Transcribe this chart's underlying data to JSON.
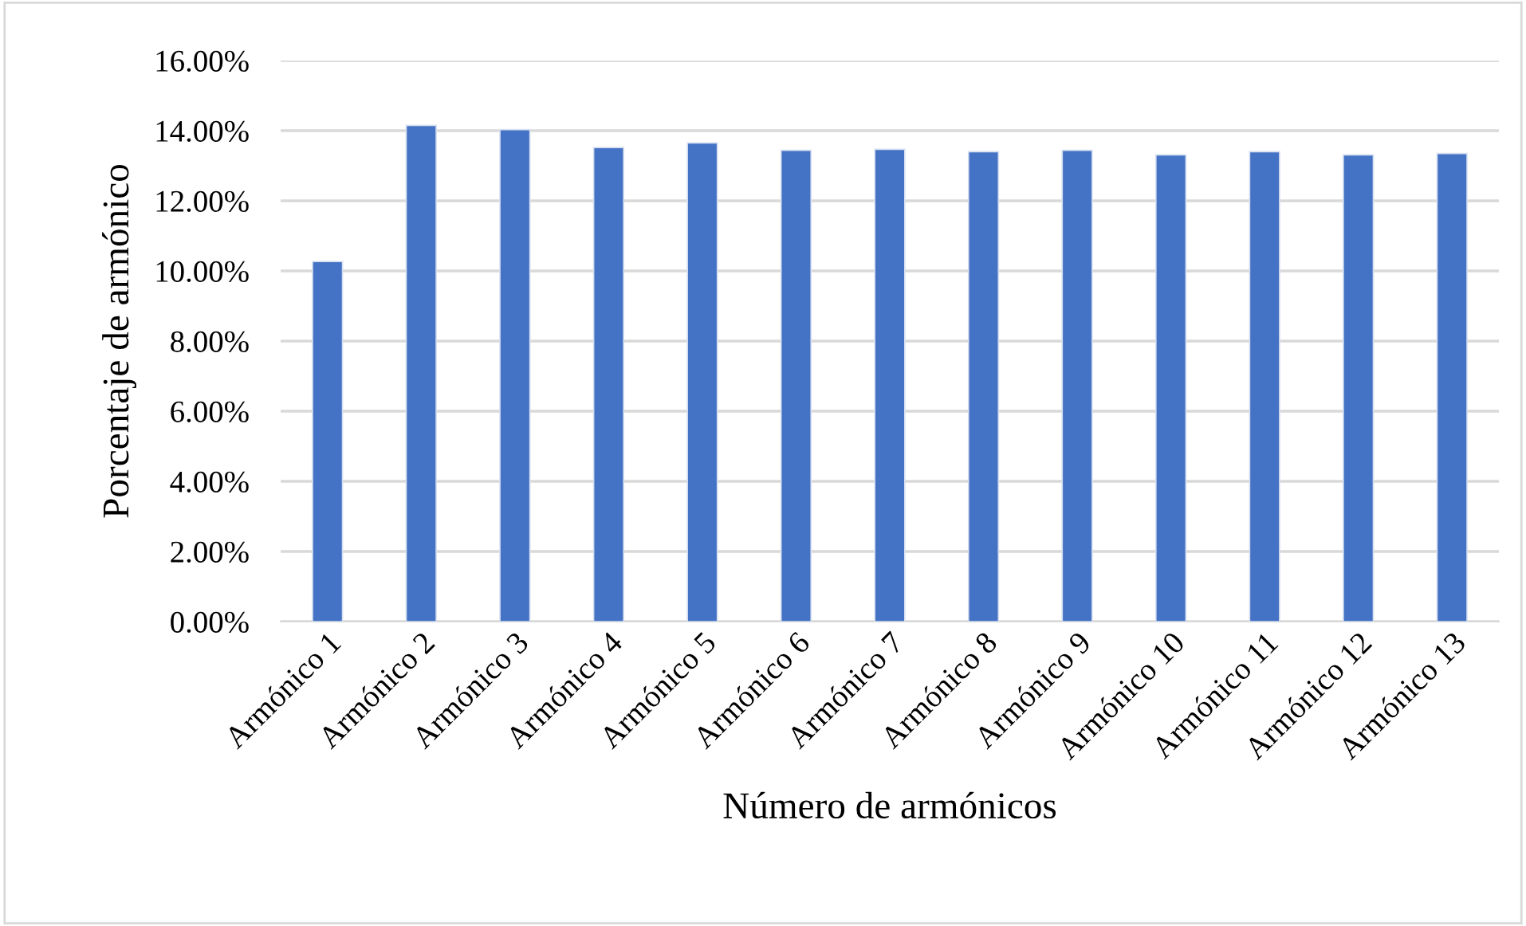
{
  "chart_data": {
    "type": "bar",
    "xlabel": "Número de armónicos",
    "ylabel": "Porcentaje de armónico",
    "categories": [
      "Armónico 1",
      "Armónico 2",
      "Armónico 3",
      "Armónico 4",
      "Armónico 5",
      "Armónico 6",
      "Armónico 7",
      "Armónico 8",
      "Armónico 9",
      "Armónico 10",
      "Armónico 11",
      "Armónico 12",
      "Armónico 13"
    ],
    "values": [
      10.27,
      14.15,
      14.03,
      13.52,
      13.65,
      13.44,
      13.47,
      13.4,
      13.44,
      13.31,
      13.4,
      13.31,
      13.35
    ],
    "color": "#4472c4",
    "ylim": [
      0,
      16
    ],
    "yticks": [
      {
        "value": 0,
        "label": "0.00%"
      },
      {
        "value": 2,
        "label": "2.00%"
      },
      {
        "value": 4,
        "label": "4.00%"
      },
      {
        "value": 6,
        "label": "6.00%"
      },
      {
        "value": 8,
        "label": "8.00%"
      },
      {
        "value": 10,
        "label": "10.00%"
      },
      {
        "value": 12,
        "label": "12.00%"
      },
      {
        "value": 14,
        "label": "14.00%"
      },
      {
        "value": 16,
        "label": "16.00%"
      }
    ],
    "grid": "y",
    "legend": false
  }
}
